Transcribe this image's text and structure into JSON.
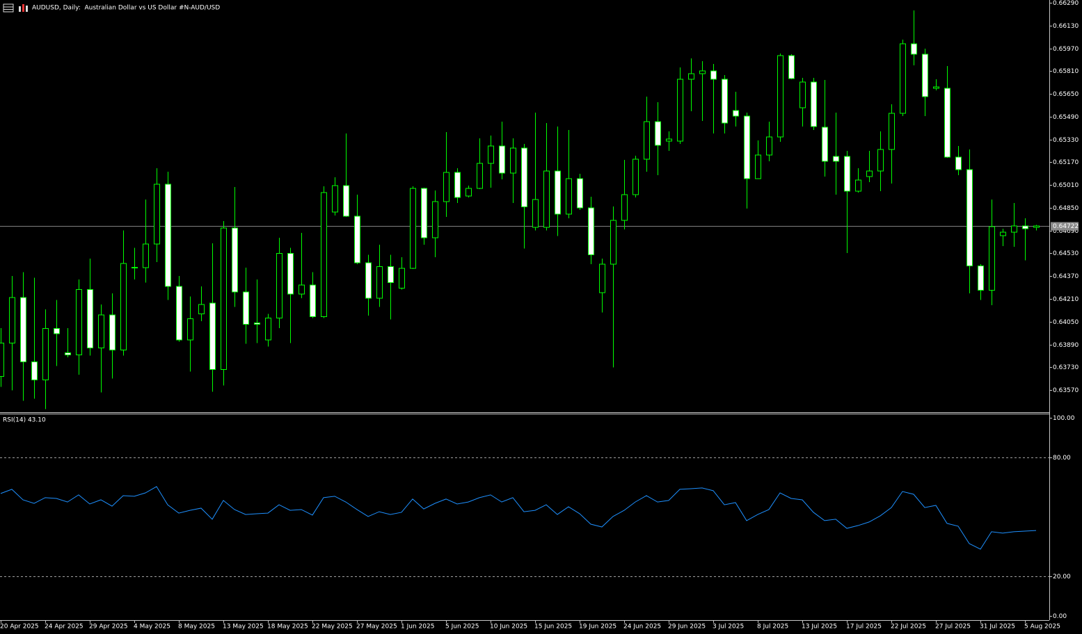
{
  "chart_data": [
    {
      "type": "candlestick",
      "title": "AUDUSD, Daily:  Australian Dollar vs US Dollar #N-AUD/USD",
      "categories": [
        "20 Apr 2025",
        null,
        null,
        null,
        "24 Apr 2025",
        null,
        null,
        null,
        "29 Apr 2025",
        null,
        null,
        null,
        "4 May 2025",
        null,
        null,
        null,
        "8 May 2025",
        null,
        null,
        null,
        "13 May 2025",
        null,
        null,
        null,
        "18 May 2025",
        null,
        null,
        null,
        "22 May 2025",
        null,
        null,
        null,
        "27 May 2025",
        null,
        null,
        null,
        "1 Jun 2025",
        null,
        null,
        null,
        "5 Jun 2025",
        null,
        null,
        null,
        "10 Jun 2025",
        null,
        null,
        null,
        "15 Jun 2025",
        null,
        null,
        null,
        "19 Jun 2025",
        null,
        null,
        null,
        "24 Jun 2025",
        null,
        null,
        null,
        "29 Jun 2025",
        null,
        null,
        null,
        "3 Jul 2025",
        null,
        null,
        null,
        "8 Jul 2025",
        null,
        null,
        null,
        "13 Jul 2025",
        null,
        null,
        null,
        "17 Jul 2025",
        null,
        null,
        null,
        "22 Jul 2025",
        null,
        null,
        null,
        "27 Jul 2025",
        null,
        null,
        null,
        "31 Jul 2025",
        null,
        null,
        null,
        "5 Aug 2025",
        null
      ],
      "open": [
        0.63665,
        0.63899,
        0.64221,
        0.63767,
        0.6364,
        0.64002,
        0.63831,
        0.63816,
        0.64275,
        0.63865,
        0.64099,
        0.6385,
        0.64431,
        0.64431,
        0.64597,
        0.65017,
        0.64299,
        0.63923,
        0.64104,
        0.64182,
        0.63714,
        0.64709,
        0.6426,
        0.64041,
        0.63923,
        0.64075,
        0.64529,
        0.64245,
        0.64309,
        0.64085,
        0.64821,
        0.65007,
        0.64792,
        0.64465,
        0.64216,
        0.64436,
        0.64285,
        0.64426,
        0.64987,
        0.64641,
        0.64895,
        0.651,
        0.64934,
        0.64987,
        0.65163,
        0.65285,
        0.65095,
        0.6527,
        0.64714,
        0.64714,
        0.65109,
        0.64807,
        0.65056,
        0.64851,
        0.64255,
        0.64455,
        0.64763,
        0.64943,
        0.65192,
        0.65456,
        0.65319,
        0.65319,
        0.65753,
        0.65792,
        0.65812,
        0.65753,
        0.65534,
        0.65495,
        0.65056,
        0.65222,
        0.65348,
        0.65919,
        0.65553,
        0.65734,
        0.65417,
        0.65212,
        0.65212,
        0.64968,
        0.6507,
        0.65109,
        0.65261,
        0.65514,
        0.66002,
        0.65929,
        0.6569,
        0.6569,
        0.65207,
        0.65119,
        0.64441,
        0.6427,
        0.64655,
        0.6468,
        0.64724,
        0.64712
      ],
      "high": [
        0.64006,
        0.64372,
        0.64397,
        0.64358,
        0.64138,
        0.64202,
        0.64006,
        0.64348,
        0.64494,
        0.64172,
        0.6425,
        0.6469,
        0.64568,
        0.64909,
        0.65129,
        0.65104,
        0.64372,
        0.64226,
        0.64299,
        0.64602,
        0.64758,
        0.64997,
        0.64431,
        0.64348,
        0.64104,
        0.64641,
        0.64568,
        0.64675,
        0.64397,
        0.65002,
        0.65065,
        0.65373,
        0.64943,
        0.64519,
        0.64592,
        0.64519,
        0.64504,
        0.65002,
        0.64992,
        0.64973,
        0.65383,
        0.65129,
        0.65007,
        0.65339,
        0.65358,
        0.65456,
        0.65339,
        0.653,
        0.65519,
        0.65446,
        0.65422,
        0.65397,
        0.6509,
        0.64929,
        0.64494,
        0.6486,
        0.65187,
        0.65217,
        0.65631,
        0.65592,
        0.65387,
        0.65836,
        0.659,
        0.6588,
        0.65861,
        0.65783,
        0.65666,
        0.65519,
        0.65324,
        0.65456,
        0.65934,
        0.65929,
        0.65763,
        0.65763,
        0.65749,
        0.65519,
        0.65251,
        0.65129,
        0.65251,
        0.65387,
        0.65578,
        0.66032,
        0.66237,
        0.65968,
        0.65753,
        0.65846,
        0.65285,
        0.65261,
        0.64455,
        0.64909,
        0.64704,
        0.64885,
        0.64777,
        0.64729
      ],
      "low": [
        0.63592,
        0.63567,
        0.63494,
        0.63509,
        0.63435,
        0.63738,
        0.63801,
        0.63679,
        0.63811,
        0.63553,
        0.6365,
        0.63811,
        0.64348,
        0.64324,
        0.6447,
        0.64202,
        0.63909,
        0.63699,
        0.64055,
        0.63557,
        0.63601,
        0.64153,
        0.63894,
        0.63899,
        0.63875,
        0.64006,
        0.63899,
        0.64216,
        0.64075,
        0.64075,
        0.64797,
        0.64787,
        0.64455,
        0.64094,
        0.64153,
        0.64065,
        0.64275,
        0.64421,
        0.64592,
        0.64504,
        0.64787,
        0.64885,
        0.64924,
        0.64982,
        0.64992,
        0.65051,
        0.64885,
        0.64563,
        0.6469,
        0.6469,
        0.64651,
        0.64777,
        0.64836,
        0.64455,
        0.64114,
        0.63728,
        0.64699,
        0.64924,
        0.65104,
        0.6508,
        0.65251,
        0.653,
        0.65529,
        0.65461,
        0.65373,
        0.65373,
        0.65422,
        0.64846,
        0.65056,
        0.65178,
        0.65314,
        0.65753,
        0.65422,
        0.65397,
        0.6507,
        0.64943,
        0.64533,
        0.64958,
        0.65031,
        0.64968,
        0.65021,
        0.65495,
        0.65851,
        0.65495,
        0.65675,
        0.65202,
        0.6508,
        0.6425,
        0.64202,
        0.64167,
        0.64582,
        0.64577,
        0.6448,
        0.6469
      ],
      "close": [
        0.63899,
        0.64221,
        0.63767,
        0.6364,
        0.64002,
        0.63967,
        0.63816,
        0.64275,
        0.63865,
        0.64099,
        0.6385,
        0.6446,
        0.64433,
        0.64597,
        0.65017,
        0.64299,
        0.63923,
        0.6407,
        0.64172,
        0.63714,
        0.64709,
        0.6426,
        0.64031,
        0.64031,
        0.64075,
        0.64529,
        0.64245,
        0.64309,
        0.64085,
        0.64958,
        0.65007,
        0.64792,
        0.64465,
        0.64216,
        0.64436,
        0.64324,
        0.64426,
        0.64987,
        0.64641,
        0.64895,
        0.651,
        0.64924,
        0.64987,
        0.65163,
        0.65285,
        0.65095,
        0.6527,
        0.64856,
        0.64909,
        0.65109,
        0.64807,
        0.65056,
        0.64851,
        0.64519,
        0.64455,
        0.64763,
        0.64943,
        0.65192,
        0.65456,
        0.6529,
        0.65334,
        0.65753,
        0.65792,
        0.65812,
        0.65753,
        0.65446,
        0.65495,
        0.65056,
        0.65222,
        0.65348,
        0.65919,
        0.65758,
        0.65734,
        0.65422,
        0.65178,
        0.65178,
        0.64968,
        0.65046,
        0.65109,
        0.65261,
        0.65514,
        0.66002,
        0.65929,
        0.65631,
        0.657,
        0.65207,
        0.65119,
        0.64441,
        0.6427,
        0.64719,
        0.6468,
        0.64724,
        0.64704,
        0.64722
      ],
      "color": "#00ff00",
      "up_body": "#000000",
      "down_body": "#ffffff",
      "current_price": 0.64722,
      "ylim": [
        0.63419,
        0.6631
      ],
      "yticks": [
        {
          "value": 0.6629,
          "label": "0.66290"
        },
        {
          "value": 0.6613,
          "label": "0.66130"
        },
        {
          "value": 0.6597,
          "label": "0.65970"
        },
        {
          "value": 0.6581,
          "label": "0.65810"
        },
        {
          "value": 0.6565,
          "label": "0.65650"
        },
        {
          "value": 0.6549,
          "label": "0.65490"
        },
        {
          "value": 0.6533,
          "label": "0.65330"
        },
        {
          "value": 0.6517,
          "label": "0.65170"
        },
        {
          "value": 0.6501,
          "label": "0.65010"
        },
        {
          "value": 0.6485,
          "label": "0.64850"
        },
        {
          "value": 0.6469,
          "label": "0.64690"
        },
        {
          "value": 0.6453,
          "label": "0.64530"
        },
        {
          "value": 0.6437,
          "label": "0.64370"
        },
        {
          "value": 0.6421,
          "label": "0.64210"
        },
        {
          "value": 0.6405,
          "label": "0.64050"
        },
        {
          "value": 0.6389,
          "label": "0.63890"
        },
        {
          "value": 0.6373,
          "label": "0.63730"
        },
        {
          "value": 0.6357,
          "label": "0.63570"
        }
      ]
    },
    {
      "type": "line",
      "title": "RSI(14) 43.10",
      "values": [
        61.8,
        63.9,
        58.6,
        56.8,
        59.7,
        59.3,
        57.5,
        61.1,
        56.5,
        58.6,
        55.4,
        60.7,
        60.4,
        62.1,
        65.3,
        56.1,
        51.9,
        53.3,
        54.4,
        48.8,
        58.3,
        53.7,
        51.2,
        51.6,
        51.9,
        56.1,
        53.3,
        53.7,
        50.9,
        59.7,
        60.4,
        57.5,
        53.7,
        50.2,
        52.6,
        51.2,
        52.3,
        59.0,
        54.0,
        56.8,
        59.0,
        56.5,
        57.5,
        59.7,
        61.1,
        57.5,
        59.7,
        52.6,
        53.3,
        56.1,
        51.2,
        55.1,
        51.6,
        46.3,
        44.9,
        50.2,
        53.3,
        57.5,
        60.7,
        57.5,
        58.3,
        63.9,
        64.2,
        64.6,
        63.2,
        56.1,
        57.2,
        48.1,
        51.2,
        53.7,
        62.1,
        59.3,
        58.6,
        52.3,
        48.1,
        48.8,
        44.2,
        45.6,
        47.4,
        50.5,
        54.7,
        62.8,
        61.4,
        54.7,
        55.8,
        46.7,
        45.3,
        36.5,
        33.7,
        42.5,
        41.8,
        42.5,
        42.8,
        43.1
      ],
      "color": "#1e90ff",
      "levels": [
        80,
        20
      ],
      "ylim": [
        -2.1,
        102.1
      ],
      "yticks": [
        {
          "value": 100,
          "label": "100.00"
        },
        {
          "value": 80,
          "label": "80.00"
        },
        {
          "value": 20,
          "label": "20.00"
        },
        {
          "value": 0,
          "label": "0.00"
        }
      ]
    }
  ]
}
